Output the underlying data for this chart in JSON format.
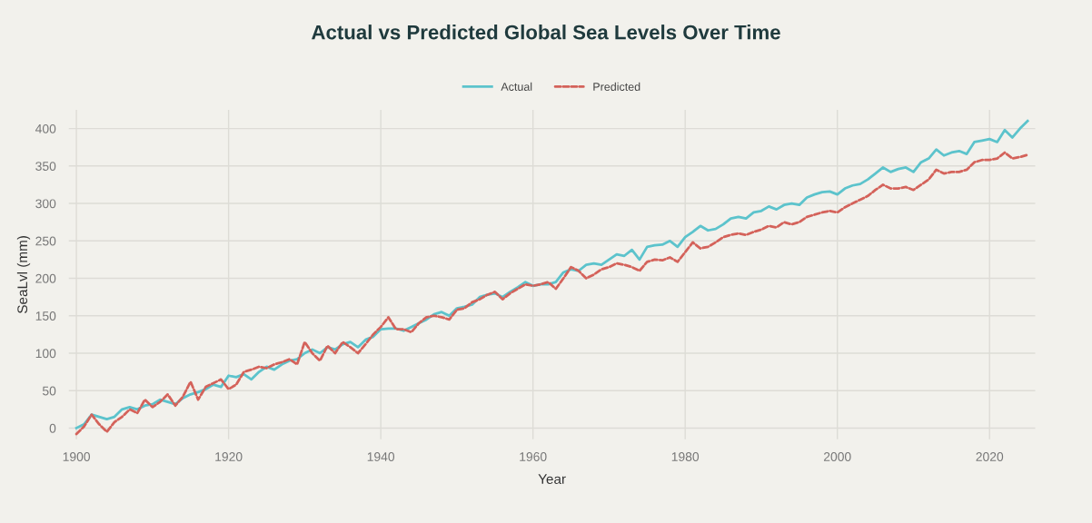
{
  "chart_data": {
    "type": "line",
    "title": "Actual vs Predicted Global Sea Levels Over Time",
    "xlabel": "Year",
    "ylabel": "SeaLvl (mm)",
    "x": [
      1900,
      1901,
      1902,
      1903,
      1904,
      1905,
      1906,
      1907,
      1908,
      1909,
      1910,
      1911,
      1912,
      1913,
      1914,
      1915,
      1916,
      1917,
      1918,
      1919,
      1920,
      1921,
      1922,
      1923,
      1924,
      1925,
      1926,
      1927,
      1928,
      1929,
      1930,
      1931,
      1932,
      1933,
      1934,
      1935,
      1936,
      1937,
      1938,
      1939,
      1940,
      1941,
      1942,
      1943,
      1944,
      1945,
      1946,
      1947,
      1948,
      1949,
      1950,
      1951,
      1952,
      1953,
      1954,
      1955,
      1956,
      1957,
      1958,
      1959,
      1960,
      1961,
      1962,
      1963,
      1964,
      1965,
      1966,
      1967,
      1968,
      1969,
      1970,
      1971,
      1972,
      1973,
      1974,
      1975,
      1976,
      1977,
      1978,
      1979,
      1980,
      1981,
      1982,
      1983,
      1984,
      1985,
      1986,
      1987,
      1988,
      1989,
      1990,
      1991,
      1992,
      1993,
      1994,
      1995,
      1996,
      1997,
      1998,
      1999,
      2000,
      2001,
      2002,
      2003,
      2004,
      2005,
      2006,
      2007,
      2008,
      2009,
      2010,
      2011,
      2012,
      2013,
      2014,
      2015,
      2016,
      2017,
      2018,
      2019,
      2020,
      2021,
      2022,
      2023,
      2024,
      2025
    ],
    "series": [
      {
        "name": "Actual",
        "color": "#5cc3cc",
        "line_style": "solid",
        "values": [
          0,
          5,
          18,
          15,
          12,
          15,
          25,
          28,
          25,
          30,
          32,
          38,
          35,
          32,
          40,
          45,
          48,
          52,
          58,
          55,
          70,
          68,
          72,
          65,
          75,
          82,
          78,
          85,
          90,
          92,
          100,
          105,
          100,
          108,
          105,
          112,
          115,
          108,
          118,
          122,
          132,
          133,
          133,
          130,
          135,
          140,
          145,
          152,
          155,
          150,
          160,
          162,
          165,
          175,
          178,
          180,
          175,
          182,
          188,
          195,
          190,
          192,
          192,
          195,
          208,
          212,
          210,
          218,
          220,
          218,
          225,
          232,
          230,
          238,
          225,
          242,
          244,
          245,
          250,
          242,
          255,
          262,
          270,
          264,
          266,
          272,
          280,
          282,
          280,
          288,
          290,
          296,
          292,
          298,
          300,
          298,
          308,
          312,
          315,
          316,
          312,
          320,
          324,
          326,
          332,
          340,
          348,
          342,
          346,
          348,
          342,
          355,
          360,
          372,
          364,
          368,
          370,
          366,
          382,
          384,
          386,
          382,
          398,
          388,
          400,
          410
        ]
      },
      {
        "name": "Predicted",
        "color": "#d4625a",
        "line_style": "dashed",
        "values": [
          -8,
          2,
          18,
          5,
          -5,
          8,
          15,
          25,
          20,
          38,
          28,
          35,
          45,
          30,
          42,
          62,
          38,
          55,
          60,
          65,
          52,
          58,
          75,
          78,
          82,
          80,
          85,
          88,
          92,
          85,
          115,
          100,
          90,
          110,
          100,
          115,
          108,
          100,
          112,
          125,
          135,
          148,
          132,
          132,
          128,
          140,
          148,
          150,
          148,
          145,
          158,
          160,
          168,
          172,
          178,
          182,
          172,
          180,
          186,
          192,
          190,
          192,
          195,
          186,
          200,
          215,
          210,
          200,
          205,
          212,
          215,
          220,
          218,
          215,
          210,
          222,
          225,
          224,
          228,
          222,
          235,
          248,
          240,
          242,
          248,
          255,
          258,
          260,
          258,
          262,
          265,
          270,
          268,
          275,
          272,
          275,
          282,
          285,
          288,
          290,
          288,
          295,
          300,
          305,
          310,
          318,
          325,
          320,
          320,
          322,
          318,
          325,
          332,
          345,
          340,
          342,
          342,
          345,
          355,
          358,
          358,
          360,
          368,
          360,
          362,
          365
        ]
      }
    ],
    "xlim": [
      1899,
      2026
    ],
    "xticks": [
      1900,
      1920,
      1940,
      1960,
      1980,
      2000,
      2020
    ],
    "ylim": [
      -15,
      425
    ],
    "yticks": [
      0,
      50,
      100,
      150,
      200,
      250,
      300,
      350,
      400
    ],
    "grid": true,
    "legend": "top",
    "marker": "none"
  }
}
